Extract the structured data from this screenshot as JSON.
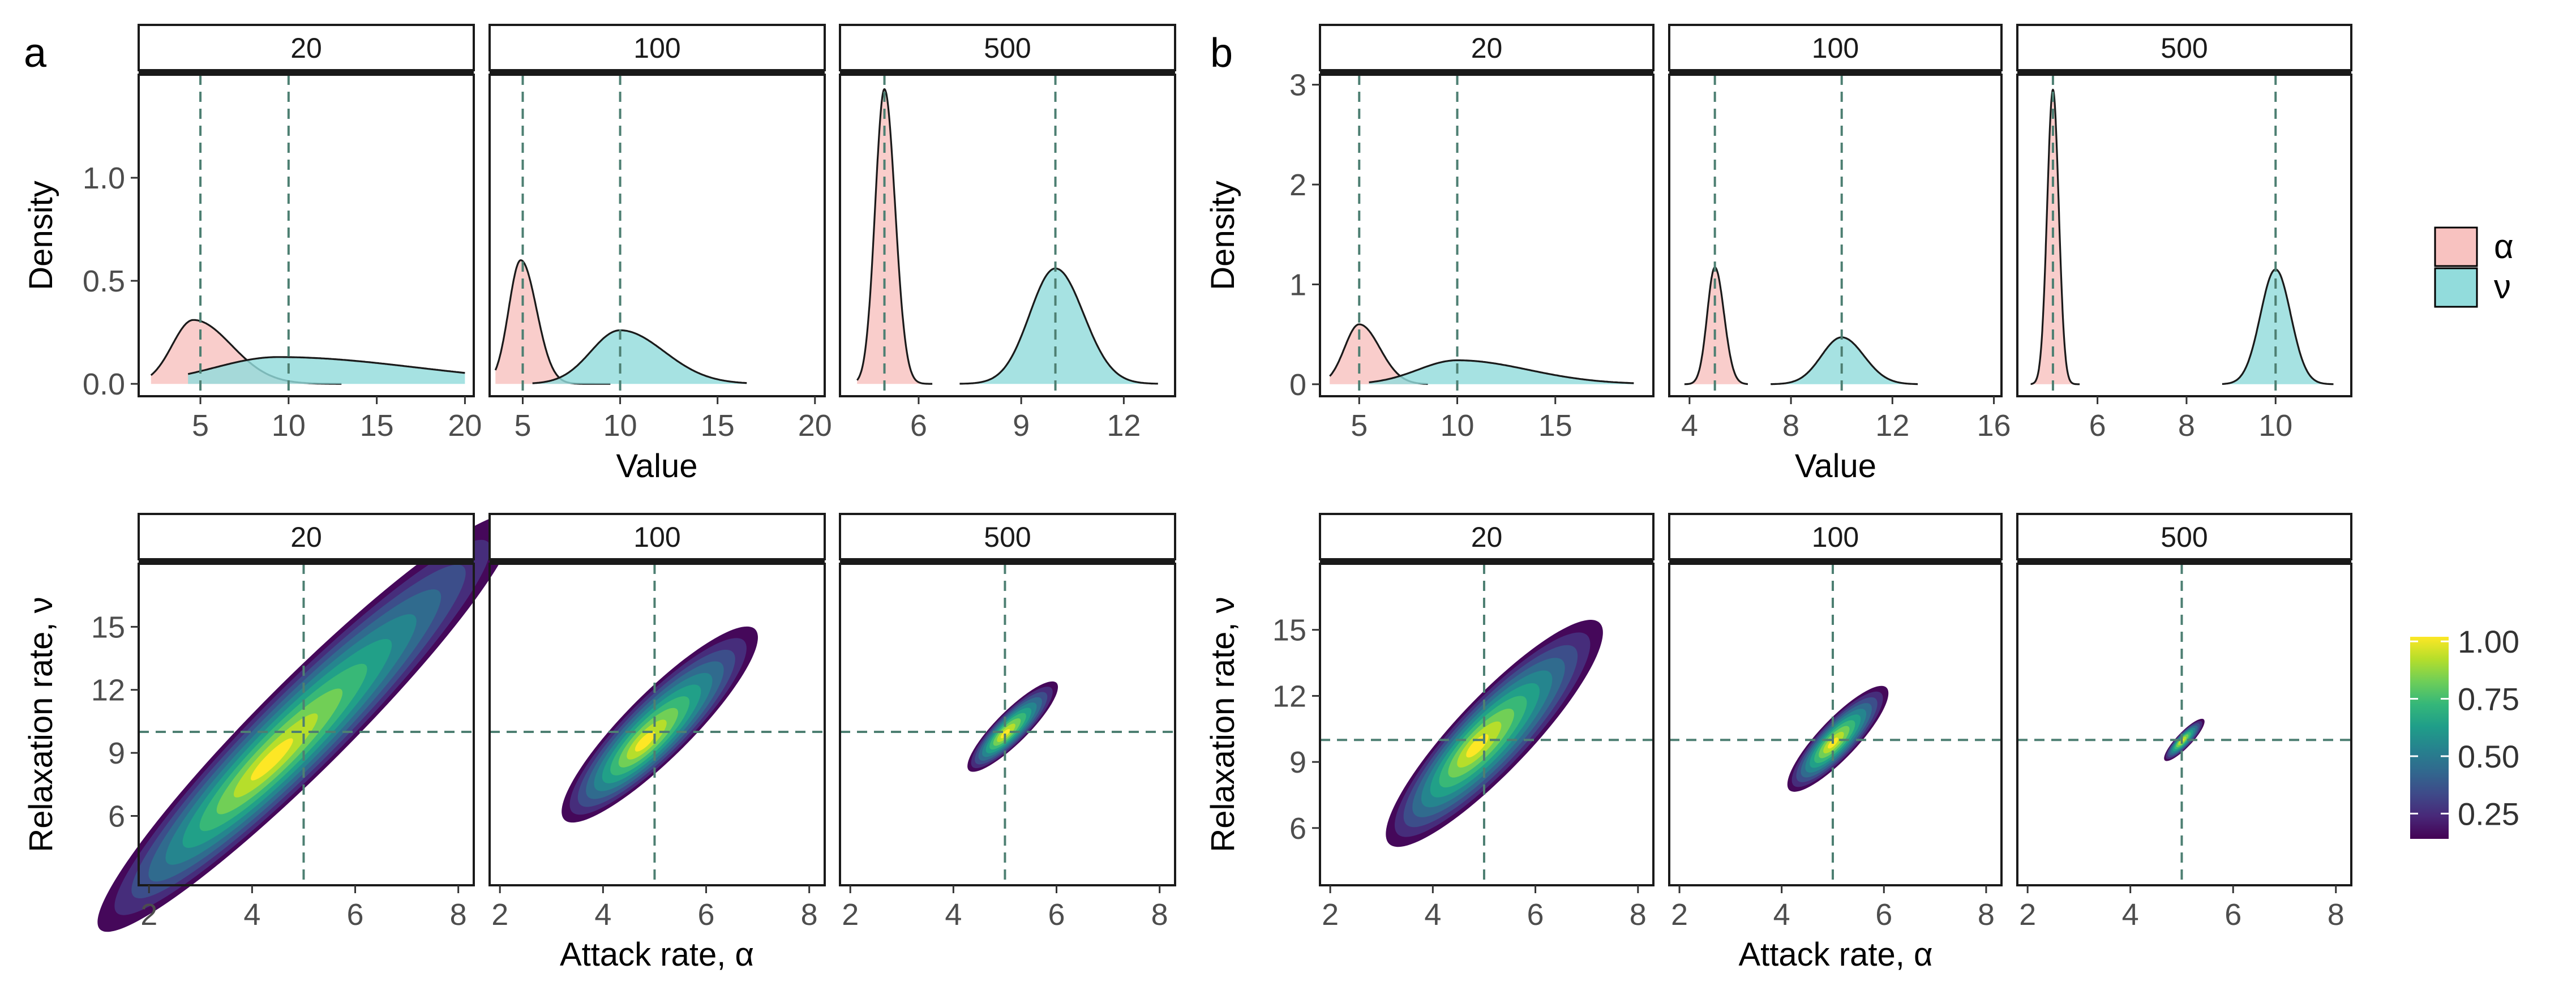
{
  "panel_labels": {
    "a": "a",
    "b": "b"
  },
  "colors": {
    "alpha_fill": "#f8c2c0",
    "nu_fill": "#92dcdc",
    "ref_line": "#4d7f72",
    "strip_fill": "#ffffff",
    "viridis": [
      "#440154",
      "#482878",
      "#3e4a89",
      "#31688e",
      "#26828e",
      "#1f9e89",
      "#35b779",
      "#6ece58",
      "#b5de2b",
      "#fde725"
    ]
  },
  "legend": {
    "alpha_label": "α",
    "nu_label": "ν",
    "colorbar_ticks": [
      "1.00",
      "0.75",
      "0.50",
      "0.25"
    ],
    "colorbar_values": [
      1.0,
      0.75,
      0.5,
      0.25
    ],
    "colorbar_range": [
      0.14,
      1.02
    ]
  },
  "chart_data": [
    {
      "type": "area",
      "panel": "a",
      "row": "density",
      "ylabel": "Density",
      "xlabel": "Value",
      "ylim": [
        -0.06,
        1.5
      ],
      "yticks": [
        0.0,
        0.5,
        1.0
      ],
      "ytick_labels": [
        "0.0",
        "0.5",
        "1.0"
      ],
      "facets": [
        {
          "strip": "20",
          "xlim": [
            1.5,
            20.5
          ],
          "xticks": [
            5,
            10,
            15,
            20
          ],
          "xtick_labels": [
            "5",
            "10",
            "15",
            "20"
          ],
          "refs": [
            5,
            10
          ],
          "alpha": {
            "mu": 4.6,
            "sigma": 1.2,
            "peak": 0.31,
            "xmin": 2.2,
            "xmax": 13,
            "skew": 1.8
          },
          "nu": {
            "mu": 9.4,
            "sigma": 3.6,
            "peak": 0.13,
            "xmin": 4.3,
            "xmax": 20,
            "skew": 2.2
          }
        },
        {
          "strip": "100",
          "xlim": [
            3.3,
            20.5
          ],
          "xticks": [
            5,
            10,
            15,
            20
          ],
          "xtick_labels": [
            "5",
            "10",
            "15",
            "20"
          ],
          "refs": [
            5,
            10
          ],
          "alpha": {
            "mu": 4.9,
            "sigma": 0.62,
            "peak": 0.6,
            "xmin": 3.6,
            "xmax": 9.5,
            "skew": 1.3
          },
          "nu": {
            "mu": 10,
            "sigma": 1.5,
            "peak": 0.26,
            "xmin": 5.5,
            "xmax": 16.5,
            "skew": 1.5
          }
        },
        {
          "strip": "500",
          "xlim": [
            3.7,
            13.5
          ],
          "xticks": [
            6,
            9,
            12
          ],
          "xtick_labels": [
            "6",
            "9",
            "12"
          ],
          "refs": [
            5,
            10
          ],
          "alpha": {
            "mu": 5,
            "sigma": 0.27,
            "peak": 1.43,
            "xmin": 4.2,
            "xmax": 6.4,
            "skew": 1.15
          },
          "nu": {
            "mu": 10,
            "sigma": 0.75,
            "peak": 0.56,
            "xmin": 7.2,
            "xmax": 13,
            "skew": 1.1
          }
        }
      ]
    },
    {
      "type": "area",
      "panel": "b",
      "row": "density",
      "ylabel": "Density",
      "xlabel": "Value",
      "ylim": [
        -0.12,
        3.1
      ],
      "yticks": [
        0,
        1,
        2,
        3
      ],
      "ytick_labels": [
        "0",
        "1",
        "2",
        "3"
      ],
      "facets": [
        {
          "strip": "20",
          "xlim": [
            3,
            20
          ],
          "xticks": [
            5,
            10,
            15
          ],
          "xtick_labels": [
            "5",
            "10",
            "15"
          ],
          "refs": [
            5,
            10
          ],
          "alpha": {
            "mu": 5,
            "sigma": 0.75,
            "peak": 0.6,
            "xmin": 3.5,
            "xmax": 8.5,
            "skew": 1.4
          },
          "nu": {
            "mu": 10,
            "sigma": 2.0,
            "peak": 0.24,
            "xmin": 5.5,
            "xmax": 19,
            "skew": 1.8
          }
        },
        {
          "strip": "100",
          "xlim": [
            3.2,
            16.3
          ],
          "xticks": [
            4,
            8,
            12,
            16
          ],
          "xtick_labels": [
            "4",
            "8",
            "12",
            "16"
          ],
          "refs": [
            5,
            10
          ],
          "alpha": {
            "mu": 5,
            "sigma": 0.3,
            "peak": 1.17,
            "xmin": 3.8,
            "xmax": 6.3,
            "skew": 1.2
          },
          "nu": {
            "mu": 10,
            "sigma": 0.8,
            "peak": 0.47,
            "xmin": 7.2,
            "xmax": 13,
            "skew": 1.1
          }
        },
        {
          "strip": "500",
          "xlim": [
            4.2,
            11.7
          ],
          "xticks": [
            6,
            8,
            10
          ],
          "xtick_labels": [
            "6",
            "8",
            "10"
          ],
          "refs": [
            5,
            10
          ],
          "alpha": {
            "mu": 5,
            "sigma": 0.13,
            "peak": 2.95,
            "xmin": 4.5,
            "xmax": 5.6,
            "skew": 1.0
          },
          "nu": {
            "mu": 10,
            "sigma": 0.34,
            "peak": 1.15,
            "xmin": 8.8,
            "xmax": 11.3,
            "skew": 1.0
          }
        }
      ]
    },
    {
      "type": "heatmap",
      "panel": "a",
      "row": "joint",
      "ylabel": "Relaxation rate, ν",
      "xlabel": "Attack rate, α",
      "xlim": [
        1.8,
        8.3
      ],
      "ylim": [
        2.7,
        18.0
      ],
      "xticks": [
        2,
        4,
        6,
        8
      ],
      "xtick_labels": [
        "2",
        "4",
        "6",
        "8"
      ],
      "yticks": [
        6,
        9,
        12,
        15
      ],
      "ytick_labels": [
        "6",
        "9",
        "12",
        "15"
      ],
      "refs": {
        "alpha": 5,
        "nu": 10
      },
      "facets": [
        {
          "strip": "20",
          "center": [
            5.05,
            10.4
          ],
          "mode": [
            4.35,
            8.6
          ],
          "u_half": 4.0,
          "v_half": 0.62
        },
        {
          "strip": "100",
          "center": [
            5.1,
            10.35
          ],
          "mode": [
            4.8,
            9.5
          ],
          "u_half": 1.85,
          "v_half": 0.45
        },
        {
          "strip": "500",
          "center": [
            5.15,
            10.25
          ],
          "mode": [
            5.0,
            9.9
          ],
          "u_half": 0.85,
          "v_half": 0.22
        }
      ]
    },
    {
      "type": "heatmap",
      "panel": "b",
      "row": "joint",
      "ylabel": "Relaxation rate, ν",
      "xlabel": "Attack rate, α",
      "xlim": [
        1.8,
        8.3
      ],
      "ylim": [
        3.4,
        18.0
      ],
      "xticks": [
        2,
        4,
        6,
        8
      ],
      "xtick_labels": [
        "2",
        "4",
        "6",
        "8"
      ],
      "yticks": [
        6,
        9,
        12,
        15
      ],
      "ytick_labels": [
        "6",
        "9",
        "12",
        "15"
      ],
      "refs": {
        "alpha": 5,
        "nu": 10
      },
      "facets": [
        {
          "strip": "20",
          "center": [
            5.2,
            10.3
          ],
          "mode": [
            4.85,
            9.7
          ],
          "u_half": 2.05,
          "v_half": 0.5
        },
        {
          "strip": "100",
          "center": [
            5.1,
            10.05
          ],
          "mode": [
            5.0,
            9.85
          ],
          "u_half": 0.95,
          "v_half": 0.26
        },
        {
          "strip": "500",
          "center": [
            5.05,
            10.0
          ],
          "mode": [
            5.0,
            9.95
          ],
          "u_half": 0.38,
          "v_half": 0.1
        }
      ]
    }
  ]
}
